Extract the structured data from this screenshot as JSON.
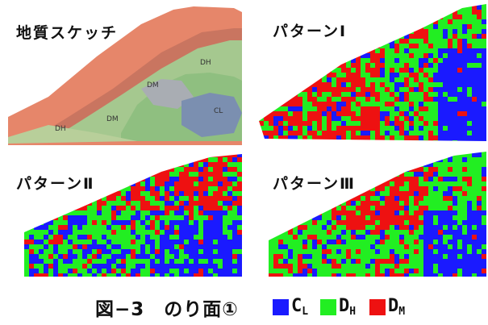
{
  "panels": {
    "sketch": {
      "title": "地質スケッチ",
      "labels": [
        "DH",
        "DM",
        "DM",
        "DH",
        "CL"
      ],
      "colors": {
        "salmon": "#e6866a",
        "green": "#8fbf80",
        "blue": "#7b8fb0"
      }
    },
    "pattern1": {
      "title": "パターンⅠ"
    },
    "pattern2": {
      "title": "パターンⅡ"
    },
    "pattern3": {
      "title": "パターンⅢ"
    }
  },
  "caption": {
    "text": "図−3　のり面①"
  },
  "legend": [
    {
      "main": "C",
      "sub": "L",
      "color": "#1a1aff"
    },
    {
      "main": "D",
      "sub": "H",
      "color": "#22ee22"
    },
    {
      "main": "D",
      "sub": "M",
      "color": "#ee1111"
    }
  ]
}
